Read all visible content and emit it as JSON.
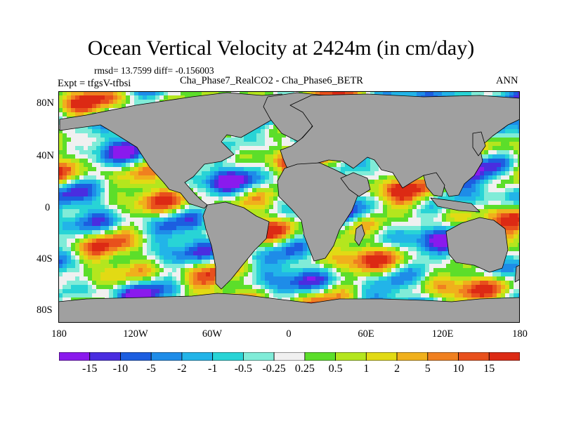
{
  "title": "Ocean Vertical Velocity at 2424m (in cm/day)",
  "stats": "rmsd= 13.7599 diff= -0.156003",
  "experiment": "Expt = tfgsV-tfbsi",
  "subtitle": "Cha_Phase7_RealCO2 - Cha_Phase6_BETR",
  "season": "ANN",
  "lat_ticks": [
    "80N",
    "40N",
    "0",
    "40S",
    "80S"
  ],
  "lon_ticks": [
    "180",
    "120W",
    "60W",
    "0",
    "60E",
    "120E",
    "180"
  ],
  "colorbar": {
    "levels": [
      "-15",
      "-10",
      "-5",
      "-2",
      "-1",
      "-0.5",
      "-0.25",
      "0.25",
      "0.5",
      "1",
      "2",
      "5",
      "10",
      "15"
    ],
    "colors": [
      "#8a1aed",
      "#4a2de0",
      "#1c5ee0",
      "#1e8ce8",
      "#22b4e8",
      "#28d4d6",
      "#80ecd8",
      "#f0f0f0",
      "#5cde2a",
      "#b4e61e",
      "#e2da14",
      "#f0b01c",
      "#f08020",
      "#e8501c",
      "#dc2a14"
    ]
  },
  "land_color": "#a0a0a0",
  "chart_data": {
    "type": "heatmap",
    "title": "Ocean Vertical Velocity at 2424m (in cm/day)",
    "variable": "difference in ocean vertical velocity",
    "units": "cm/day",
    "depth": "2424m",
    "period": "ANN",
    "difference": "Cha_Phase7_RealCO2 - Cha_Phase6_BETR",
    "rmsd": 13.7599,
    "mean_diff": -0.156003,
    "xlim": [
      -180,
      180
    ],
    "ylim": [
      -90,
      90
    ],
    "contour_levels": [
      -15,
      -10,
      -5,
      -2,
      -1,
      -0.5,
      -0.25,
      0.25,
      0.5,
      1,
      2,
      5,
      10,
      15
    ]
  }
}
